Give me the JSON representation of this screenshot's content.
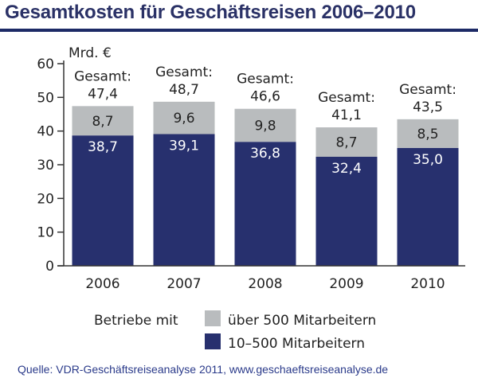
{
  "title": "Gesamtkosten für Geschäftsreisen 2006–2010",
  "source": "Quelle: VDR-Geschäftsreiseanalyse 2011, www.geschaeftsreiseanalyse.de",
  "chart_data": {
    "type": "bar",
    "stacked": true,
    "title": "Gesamtkosten für Geschäftsreisen 2006–2010",
    "ylabel": "Mrd. €",
    "xlabel": "",
    "ylim": [
      0,
      60
    ],
    "yticks": [
      0,
      10,
      20,
      30,
      40,
      50,
      60
    ],
    "categories": [
      "2006",
      "2007",
      "2008",
      "2009",
      "2010"
    ],
    "series": [
      {
        "name": "10–500 Mitarbeitern",
        "values": [
          38.7,
          39.1,
          36.8,
          32.4,
          35.0
        ],
        "labels": [
          "38,7",
          "39,1",
          "36,8",
          "32,4",
          "35,0"
        ],
        "color": "#27306e"
      },
      {
        "name": "über 500 Mitarbeitern",
        "values": [
          8.7,
          9.6,
          9.8,
          8.7,
          8.5
        ],
        "labels": [
          "8,7",
          "9,6",
          "9,8",
          "8,7",
          "8,5"
        ],
        "color": "#b9bcbe"
      }
    ],
    "totals": [
      47.4,
      48.7,
      46.6,
      41.1,
      43.5
    ],
    "total_prefix": "Gesamt:",
    "total_labels": [
      "47,4",
      "48,7",
      "46,6",
      "41,1",
      "43,5"
    ],
    "legend_title": "Betriebe mit",
    "legend": [
      "über 500 Mitarbeitern",
      "10–500 Mitarbeitern"
    ],
    "grid": false
  }
}
